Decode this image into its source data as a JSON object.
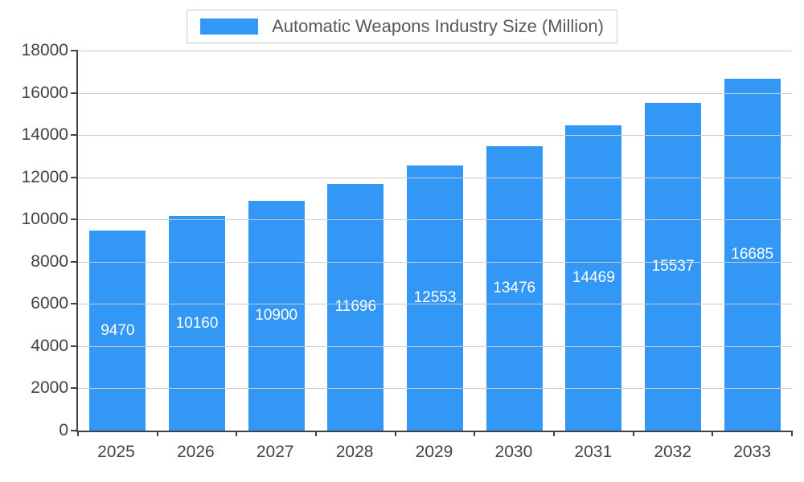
{
  "chart_data": {
    "type": "bar",
    "title": "Automatic Weapons Industry Size (Million)",
    "categories": [
      "2025",
      "2026",
      "2027",
      "2028",
      "2029",
      "2030",
      "2031",
      "2032",
      "2033"
    ],
    "values": [
      9470,
      10160,
      10900,
      11696,
      12553,
      13476,
      14469,
      15537,
      16685
    ],
    "xlabel": "",
    "ylabel": "",
    "ylim": [
      0,
      18000
    ],
    "yticks": [
      0,
      2000,
      4000,
      6000,
      8000,
      10000,
      12000,
      14000,
      16000,
      18000
    ],
    "legend_position": "top",
    "grid": true,
    "bar_color": "#3398F5",
    "value_label_color": "#FFFFFF",
    "axis_color": "#424242",
    "grid_color": "#CCCCCC",
    "tick_label_color": "#424242",
    "legend_text_color": "#595959"
  }
}
